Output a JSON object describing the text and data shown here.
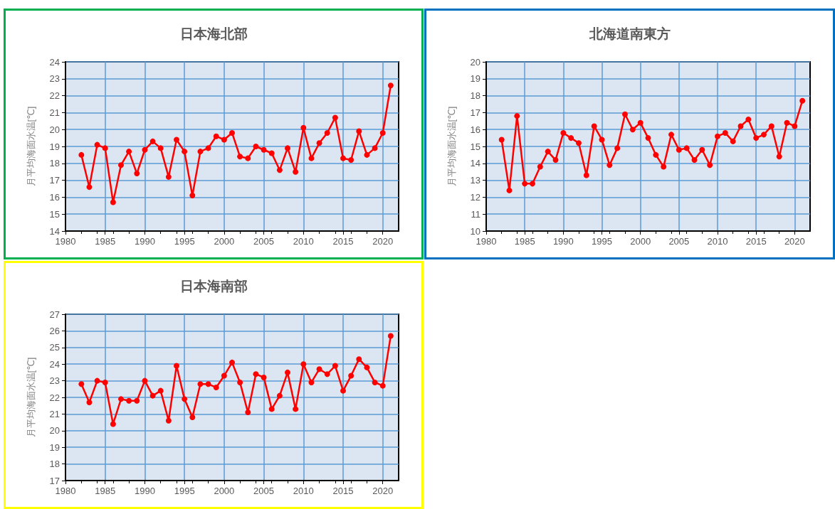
{
  "chart_data": [
    {
      "type": "line",
      "title": "日本海北部",
      "ylabel": "月平均海面水温[℃]",
      "x": [
        1982,
        1983,
        1984,
        1985,
        1986,
        1987,
        1988,
        1989,
        1990,
        1991,
        1992,
        1993,
        1994,
        1995,
        1996,
        1997,
        1998,
        1999,
        2000,
        2001,
        2002,
        2003,
        2004,
        2005,
        2006,
        2007,
        2008,
        2009,
        2010,
        2011,
        2012,
        2013,
        2014,
        2015,
        2016,
        2017,
        2018,
        2019,
        2020,
        2021
      ],
      "series": [
        {
          "color": "#ff0000",
          "values": [
            18.5,
            16.6,
            19.1,
            18.9,
            15.7,
            17.9,
            18.7,
            17.4,
            18.8,
            19.3,
            18.9,
            17.2,
            19.4,
            18.7,
            16.1,
            18.7,
            18.9,
            19.6,
            19.4,
            19.8,
            18.4,
            18.3,
            19.0,
            18.8,
            18.6,
            17.6,
            18.9,
            17.5,
            20.1,
            18.3,
            19.2,
            19.8,
            20.7,
            18.3,
            18.2,
            19.9,
            18.5,
            18.9,
            19.8,
            22.6
          ]
        }
      ],
      "xlim": [
        1980,
        2022
      ],
      "xticks": [
        1980,
        1985,
        1990,
        1995,
        2000,
        2005,
        2010,
        2015,
        2020
      ],
      "ylim": [
        14,
        24
      ],
      "yticks": [
        14,
        15,
        16,
        17,
        18,
        19,
        20,
        21,
        22,
        23,
        24
      ],
      "grid": true,
      "marker": "circle"
    },
    {
      "type": "line",
      "title": "北海道南東方",
      "ylabel": "月平均海面水温[℃]",
      "x": [
        1982,
        1983,
        1984,
        1985,
        1986,
        1987,
        1988,
        1989,
        1990,
        1991,
        1992,
        1993,
        1994,
        1995,
        1996,
        1997,
        1998,
        1999,
        2000,
        2001,
        2002,
        2003,
        2004,
        2005,
        2006,
        2007,
        2008,
        2009,
        2010,
        2011,
        2012,
        2013,
        2014,
        2015,
        2016,
        2017,
        2018,
        2019,
        2020,
        2021
      ],
      "series": [
        {
          "color": "#ff0000",
          "values": [
            15.4,
            12.4,
            16.8,
            12.8,
            12.8,
            13.8,
            14.7,
            14.2,
            15.8,
            15.5,
            15.2,
            13.3,
            16.2,
            15.4,
            13.9,
            14.9,
            16.9,
            16.0,
            16.4,
            15.5,
            14.5,
            13.8,
            15.7,
            14.8,
            14.9,
            14.2,
            14.8,
            13.9,
            15.6,
            15.8,
            15.3,
            16.2,
            16.6,
            15.5,
            15.7,
            16.2,
            14.4,
            16.4,
            16.2,
            17.7
          ]
        }
      ],
      "xlim": [
        1980,
        2022
      ],
      "xticks": [
        1980,
        1985,
        1990,
        1995,
        2000,
        2005,
        2010,
        2015,
        2020
      ],
      "ylim": [
        10,
        20
      ],
      "yticks": [
        10,
        11,
        12,
        13,
        14,
        15,
        16,
        17,
        18,
        19,
        20
      ],
      "grid": true,
      "marker": "circle"
    },
    {
      "type": "line",
      "title": "日本海南部",
      "ylabel": "月平均海面水温[℃]",
      "x": [
        1982,
        1983,
        1984,
        1985,
        1986,
        1987,
        1988,
        1989,
        1990,
        1991,
        1992,
        1993,
        1994,
        1995,
        1996,
        1997,
        1998,
        1999,
        2000,
        2001,
        2002,
        2003,
        2004,
        2005,
        2006,
        2007,
        2008,
        2009,
        2010,
        2011,
        2012,
        2013,
        2014,
        2015,
        2016,
        2017,
        2018,
        2019,
        2020,
        2021
      ],
      "series": [
        {
          "color": "#ff0000",
          "values": [
            22.8,
            21.7,
            23.0,
            22.9,
            20.4,
            21.9,
            21.8,
            21.8,
            23.0,
            22.1,
            22.4,
            20.6,
            23.9,
            21.9,
            20.8,
            22.8,
            22.8,
            22.6,
            23.3,
            24.1,
            22.9,
            21.1,
            23.4,
            23.2,
            21.3,
            22.1,
            23.5,
            21.3,
            24.0,
            22.9,
            23.7,
            23.4,
            23.9,
            22.4,
            23.3,
            24.3,
            23.8,
            22.9,
            22.7,
            25.7
          ]
        }
      ],
      "xlim": [
        1980,
        2022
      ],
      "xticks": [
        1980,
        1985,
        1990,
        1995,
        2000,
        2005,
        2010,
        2015,
        2020
      ],
      "ylim": [
        17,
        27
      ],
      "yticks": [
        17,
        18,
        19,
        20,
        21,
        22,
        23,
        24,
        25,
        26,
        27
      ],
      "grid": true,
      "marker": "circle"
    }
  ]
}
